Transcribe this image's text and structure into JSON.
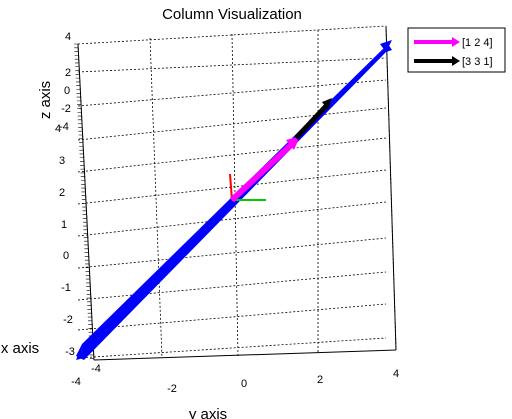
{
  "chart_data": {
    "type": "3d-vector",
    "title": "Column Visualization",
    "xlabel": "x axis",
    "ylabel": "y axis",
    "zlabel": "z axis",
    "y_ticks": [
      "-4",
      "-2",
      "0",
      "2",
      "4"
    ],
    "z_ticks_main": [
      "4",
      "3",
      "2",
      "1",
      "0",
      "-1",
      "-2",
      "-3"
    ],
    "z_ticks_upper": [
      "4",
      "2",
      "0",
      "-2",
      "-4"
    ],
    "x_ticks": [
      "-4"
    ],
    "legend": [
      "[1 2 4]",
      "[3 3 1]"
    ],
    "series": [
      {
        "name": "[1 2 4]",
        "color": "#ff00ff",
        "vector": [
          1,
          2,
          4
        ]
      },
      {
        "name": "[3 3 1]",
        "color": "#000000",
        "vector": [
          3,
          3,
          1
        ]
      }
    ],
    "span_line_color": "#0000ff",
    "origin_axes_colors": [
      "#ff0000",
      "#00cc00"
    ],
    "grid": true,
    "legend_position": "top-right"
  }
}
